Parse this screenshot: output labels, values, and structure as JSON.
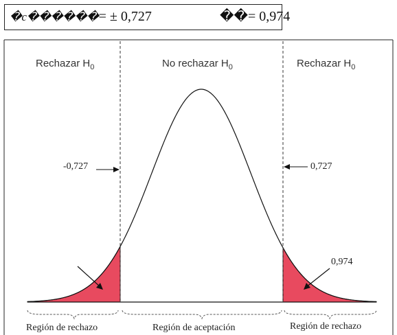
{
  "header": {
    "left_symbol": "�c������",
    "left_value": "= ± 0,727",
    "right_symbol": "��",
    "right_value": "= 0,974"
  },
  "diagram": {
    "regions_top": {
      "left": "Rechazar H",
      "left_sub": "0",
      "middle": "No rechazar H",
      "middle_sub": "0",
      "right": "Rechazar H",
      "right_sub": "0"
    },
    "critical_left": "-0,727",
    "critical_right": "0,727",
    "statistic": "0,974",
    "regions_bottom": {
      "left": "Región de rechazo",
      "middle": "Región de aceptación",
      "right": "Región de rechazo"
    },
    "colors": {
      "rejection_fill": "#e84a5f",
      "line": "#111111"
    }
  }
}
